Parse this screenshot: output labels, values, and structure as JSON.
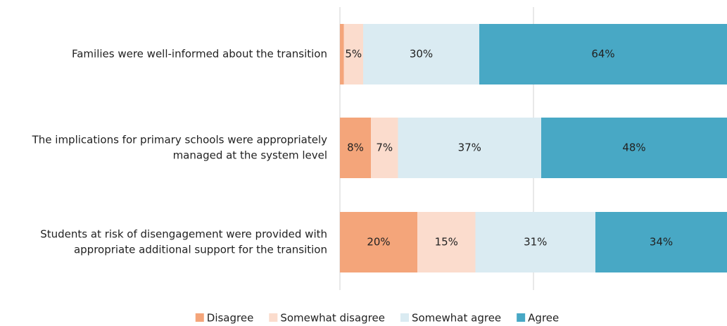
{
  "chart_data": {
    "type": "stacked_barh",
    "categories": [
      [
        "Families were well-informed about the transition"
      ],
      [
        "The implications for primary schools were appropriately",
        "managed at the system level"
      ],
      [
        "Students at risk of disengagement were provided with",
        "appropriate additional support for the transition"
      ]
    ],
    "series": [
      {
        "name": "Disagree",
        "color": "#f4a57a",
        "values": [
          1,
          8,
          20
        ],
        "value_labels": [
          null,
          "8%",
          "20%"
        ]
      },
      {
        "name": "Somewhat disagree",
        "color": "#fbdccd",
        "values": [
          5,
          7,
          15
        ],
        "value_labels": [
          "5%",
          "7%",
          "15%"
        ]
      },
      {
        "name": "Somewhat agree",
        "color": "#daebf2",
        "values": [
          30,
          37,
          31
        ],
        "value_labels": [
          "30%",
          "37%",
          "31%"
        ]
      },
      {
        "name": "Agree",
        "color": "#48a8c5",
        "values": [
          64,
          48,
          34
        ],
        "value_labels": [
          "64%",
          "48%",
          "34%"
        ]
      }
    ],
    "xlim": [
      0,
      100
    ],
    "xticks": [
      0,
      50
    ],
    "grid": true,
    "legend": "bottom"
  }
}
